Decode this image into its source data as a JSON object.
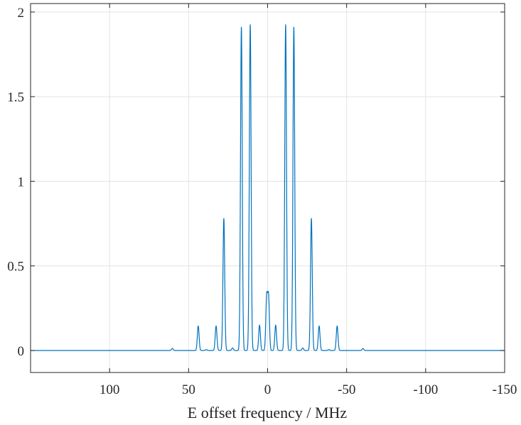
{
  "chart_data": {
    "type": "line",
    "title": "",
    "xlabel": "E offset frequency / MHz",
    "ylabel": "",
    "xlim": [
      150,
      -150
    ],
    "x_reversed": true,
    "ylim": [
      -0.13,
      2.05
    ],
    "grid": true,
    "legend": "none",
    "x_ticks": [
      100,
      50,
      0,
      -50,
      -100,
      -150
    ],
    "x_tick_labels": [
      "100",
      "50",
      "0",
      "-50",
      "-100",
      "-150"
    ],
    "y_ticks": [
      0,
      0.5,
      1,
      1.5,
      2
    ],
    "y_tick_labels": [
      "0",
      "0.5",
      "1",
      "1.5",
      "2"
    ],
    "series": [
      {
        "color": "#0072BD",
        "baseline": 0,
        "x_range": [
          150,
          -150
        ],
        "peaks": [
          {
            "x": 60.3,
            "y": 0.012
          },
          {
            "x": 43.9,
            "y": 0.145
          },
          {
            "x": 38.8,
            "y": 0.005
          },
          {
            "x": 32.6,
            "y": 0.145
          },
          {
            "x": 27.7,
            "y": 0.78
          },
          {
            "x": 22.2,
            "y": 0.015
          },
          {
            "x": 16.6,
            "y": 1.91
          },
          {
            "x": 11.0,
            "y": 1.925
          },
          {
            "x": 5.1,
            "y": 0.15
          },
          {
            "x": 0.6,
            "y": 0.31
          },
          {
            "x": -0.6,
            "y": 0.31
          },
          {
            "x": -5.1,
            "y": 0.15
          },
          {
            "x": -11.4,
            "y": 1.925
          },
          {
            "x": -16.6,
            "y": 1.91
          },
          {
            "x": -22.2,
            "y": 0.015
          },
          {
            "x": -27.7,
            "y": 0.78
          },
          {
            "x": -32.6,
            "y": 0.145
          },
          {
            "x": -38.8,
            "y": 0.005
          },
          {
            "x": -44.0,
            "y": 0.145
          },
          {
            "x": -60.3,
            "y": 0.012
          }
        ]
      }
    ]
  }
}
